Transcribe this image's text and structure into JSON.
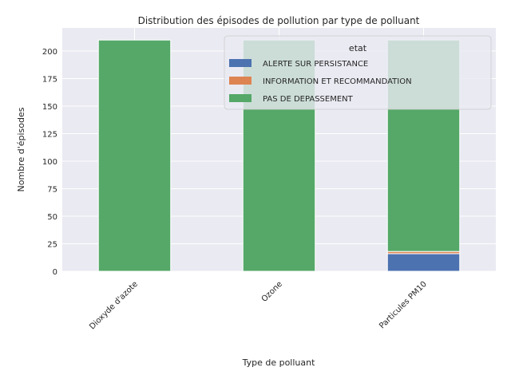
{
  "chart_data": {
    "type": "bar",
    "stacked": true,
    "title": "Distribution des épisodes de pollution par type de polluant",
    "xlabel": "Type de polluant",
    "ylabel": "Nombre d'épisodes",
    "categories": [
      "Dioxyde d'azote",
      "Ozone",
      "Particules PM10"
    ],
    "series": [
      {
        "name": "ALERTE SUR PERSISTANCE",
        "color": "#4c72b0",
        "values": [
          0,
          0,
          16
        ]
      },
      {
        "name": "INFORMATION ET RECOMMANDATION",
        "color": "#dd8452",
        "values": [
          0,
          0,
          2
        ]
      },
      {
        "name": "PAS DE DEPASSEMENT",
        "color": "#55a868",
        "values": [
          210,
          210,
          192
        ]
      }
    ],
    "ylim": [
      0,
      221
    ],
    "yticks": [
      0,
      25,
      50,
      75,
      100,
      125,
      150,
      175,
      200
    ],
    "legend": {
      "title": "etat",
      "position": "top-right"
    },
    "grid": true,
    "background": "#eaeaf2"
  }
}
